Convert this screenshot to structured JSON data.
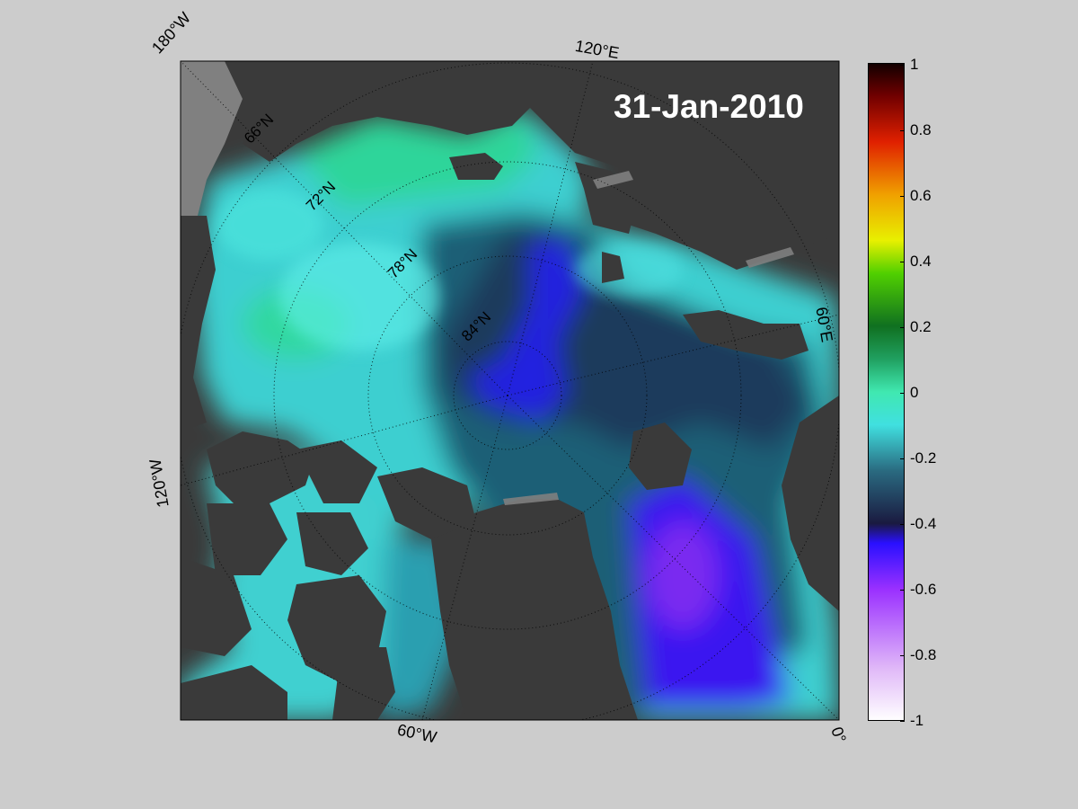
{
  "title_date": "31-Jan-2010",
  "longitude_labels": {
    "top_left": "180°W",
    "top": "120°E",
    "right": "60°E",
    "left": "120°W",
    "bottom": "60°W",
    "bottom_right": "0°"
  },
  "latitude_labels": [
    "66°N",
    "72°N",
    "78°N",
    "84°N"
  ],
  "colorbar": {
    "ticks": [
      "1",
      "0.8",
      "0.6",
      "0.4",
      "0.2",
      "0",
      "-0.2",
      "-0.4",
      "-0.6",
      "-0.8",
      "-1"
    ],
    "colors": [
      "#ffffff",
      "#d7a8f0",
      "#9a30ff",
      "#3010ff",
      "#2a3a7a",
      "#2a8a99",
      "#4de8e8",
      "#3cd8a0",
      "#108020",
      "#30c000",
      "#e8f000",
      "#f0a000",
      "#e03000",
      "#a00000",
      "#200000"
    ]
  },
  "colors": {
    "land": "#3a3a3a",
    "ice_shelf_gray": "#808080",
    "background": "#cccccc"
  }
}
